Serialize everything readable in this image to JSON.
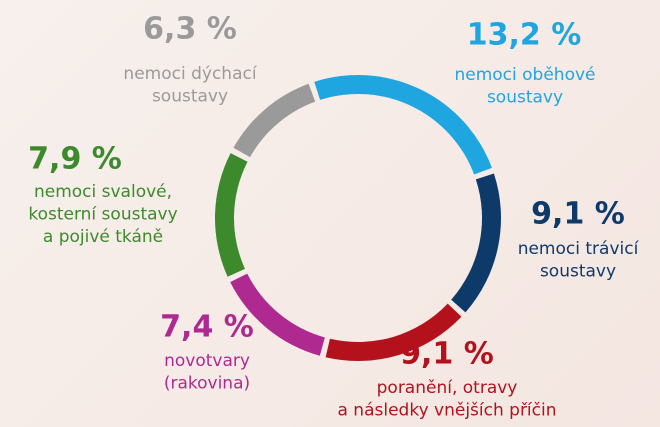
{
  "chart_data": {
    "type": "donut",
    "categories": [
      [
        "nemoci oběhové",
        "soustavy"
      ],
      [
        "nemoci trávicí",
        "soustavy"
      ],
      [
        "poranění, otravy",
        "a následky vnějších příčin"
      ],
      [
        "novotvary",
        "(rakovina)"
      ],
      [
        "nemoci svalové,",
        "kosterní soustavy",
        "a pojivé tkáně"
      ],
      [
        "nemoci dýchací",
        "soustavy"
      ]
    ],
    "values": [
      13.2,
      9.1,
      9.1,
      7.4,
      7.9,
      6.3
    ],
    "value_labels": [
      "13,2 %",
      "9,1 %",
      "9,1 %",
      "7,4 %",
      "7,9 %",
      "6,3 %"
    ],
    "colors": [
      "#1fa6e0",
      "#0e3a6a",
      "#b3121d",
      "#ae2a90",
      "#3d8a2c",
      "#9a9a9a"
    ]
  }
}
